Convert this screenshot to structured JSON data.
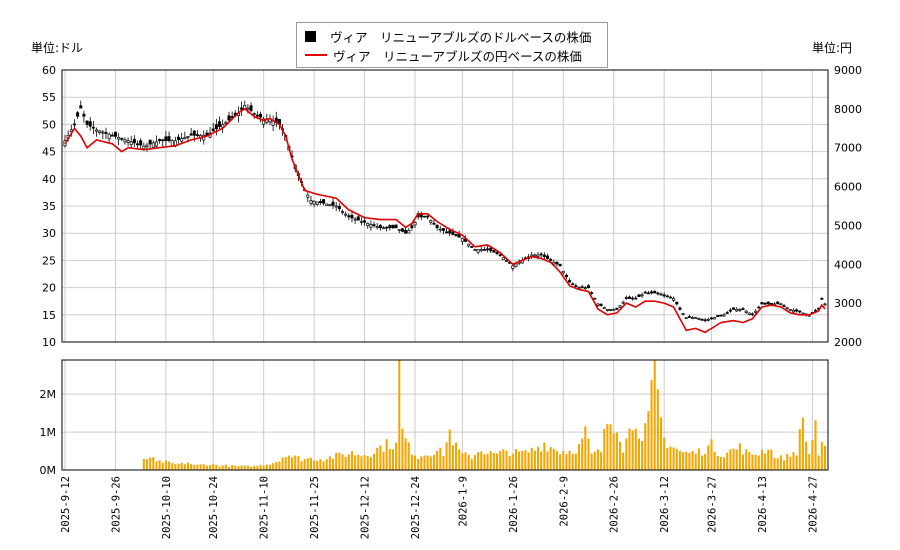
{
  "legend": {
    "usd": "ヴィア　リニューアブルズのドルベースの株価",
    "jpy": "ヴィア　リニューアブルズの円ベースの株価"
  },
  "units": {
    "left": "単位:ドル",
    "right": "単位:円"
  },
  "colors": {
    "candle_up": "#ffffff",
    "candle_down": "#000000",
    "yen_line": "#e00000",
    "volume": "#f5a500",
    "grid": "#cccccc"
  },
  "chart_data": {
    "type": "candlestick+line+bar",
    "x_start": "2025-09-12",
    "x_end": "2026-05-08",
    "x_ticks": [
      "2025-9-12",
      "2025-9-26",
      "2025-10-10",
      "2025-10-24",
      "2025-11-10",
      "2025-11-25",
      "2025-12-12",
      "2025-12-24",
      "2026-1-9",
      "2026-1-26",
      "2026-2-9",
      "2026-2-26",
      "2026-3-12",
      "2026-3-27",
      "2026-4-13",
      "2026-4-27"
    ],
    "y_left": {
      "min": 10,
      "max": 60,
      "ticks": [
        "10",
        "15",
        "20",
        "25",
        "30",
        "35",
        "40",
        "45",
        "50",
        "55",
        "60"
      ]
    },
    "y_right": {
      "min": 2000,
      "max": 9000,
      "ticks": [
        "2000",
        "3000",
        "4000",
        "5000",
        "6000",
        "7000",
        "8000",
        "9000"
      ]
    },
    "volume_axis": {
      "min": 0,
      "max": 2900000,
      "ticks": [
        "0M",
        "1M",
        "2M"
      ]
    },
    "anchors": {
      "usd": [
        [
          0,
          47
        ],
        [
          3,
          50
        ],
        [
          5,
          53
        ],
        [
          7,
          50
        ],
        [
          10,
          49
        ],
        [
          15,
          48
        ],
        [
          20,
          47
        ],
        [
          25,
          46
        ],
        [
          30,
          47
        ],
        [
          35,
          47
        ],
        [
          40,
          48
        ],
        [
          45,
          48
        ],
        [
          50,
          50
        ],
        [
          55,
          52
        ],
        [
          57,
          53.5
        ],
        [
          60,
          52
        ],
        [
          63,
          51
        ],
        [
          65,
          51
        ],
        [
          68,
          50
        ],
        [
          70,
          48
        ],
        [
          72,
          44
        ],
        [
          74,
          41
        ],
        [
          76,
          38
        ],
        [
          78,
          36
        ],
        [
          82,
          35.5
        ],
        [
          86,
          35
        ],
        [
          90,
          33
        ],
        [
          95,
          32
        ],
        [
          100,
          31
        ],
        [
          105,
          31
        ],
        [
          108,
          30
        ],
        [
          110,
          31
        ],
        [
          112,
          33
        ],
        [
          115,
          33
        ],
        [
          118,
          31
        ],
        [
          122,
          30
        ],
        [
          126,
          29
        ],
        [
          130,
          27
        ],
        [
          134,
          27
        ],
        [
          138,
          26
        ],
        [
          142,
          24
        ],
        [
          145,
          25
        ],
        [
          148,
          26
        ],
        [
          151,
          26
        ],
        [
          154,
          25
        ],
        [
          157,
          24
        ],
        [
          160,
          21
        ],
        [
          163,
          20
        ],
        [
          166,
          20
        ],
        [
          169,
          17
        ],
        [
          172,
          16
        ],
        [
          175,
          16
        ],
        [
          178,
          18
        ],
        [
          181,
          18
        ],
        [
          184,
          19
        ],
        [
          187,
          19
        ],
        [
          190,
          18.5
        ],
        [
          193,
          18
        ],
        [
          195,
          16
        ],
        [
          197,
          14.5
        ],
        [
          200,
          14.5
        ],
        [
          203,
          14
        ],
        [
          206,
          14.5
        ],
        [
          209,
          15
        ],
        [
          212,
          16
        ],
        [
          215,
          16
        ],
        [
          218,
          15
        ],
        [
          221,
          17
        ],
        [
          224,
          17
        ],
        [
          227,
          17
        ],
        [
          230,
          16
        ],
        [
          233,
          15.5
        ],
        [
          236,
          15
        ],
        [
          239,
          16
        ],
        [
          240,
          18
        ],
        [
          241,
          17
        ]
      ],
      "jpy": [
        [
          0,
          7100
        ],
        [
          3,
          7500
        ],
        [
          5,
          7300
        ],
        [
          7,
          7000
        ],
        [
          10,
          7200
        ],
        [
          15,
          7100
        ],
        [
          18,
          6900
        ],
        [
          20,
          7000
        ],
        [
          25,
          6950
        ],
        [
          30,
          7000
        ],
        [
          35,
          7050
        ],
        [
          40,
          7200
        ],
        [
          45,
          7300
        ],
        [
          50,
          7500
        ],
        [
          55,
          7900
        ],
        [
          57,
          8000
        ],
        [
          60,
          7800
        ],
        [
          63,
          7700
        ],
        [
          65,
          7750
        ],
        [
          68,
          7600
        ],
        [
          70,
          7300
        ],
        [
          72,
          6700
        ],
        [
          74,
          6300
        ],
        [
          76,
          5900
        ],
        [
          80,
          5800
        ],
        [
          86,
          5700
        ],
        [
          90,
          5400
        ],
        [
          95,
          5200
        ],
        [
          100,
          5150
        ],
        [
          105,
          5150
        ],
        [
          108,
          4950
        ],
        [
          110,
          5050
        ],
        [
          112,
          5300
        ],
        [
          115,
          5300
        ],
        [
          118,
          5100
        ],
        [
          122,
          4900
        ],
        [
          126,
          4750
        ],
        [
          130,
          4450
        ],
        [
          134,
          4500
        ],
        [
          138,
          4300
        ],
        [
          142,
          4000
        ],
        [
          145,
          4100
        ],
        [
          148,
          4200
        ],
        [
          151,
          4150
        ],
        [
          154,
          4050
        ],
        [
          157,
          3800
        ],
        [
          160,
          3450
        ],
        [
          163,
          3350
        ],
        [
          166,
          3300
        ],
        [
          169,
          2850
        ],
        [
          172,
          2700
        ],
        [
          175,
          2750
        ],
        [
          178,
          3000
        ],
        [
          181,
          2900
        ],
        [
          184,
          3050
        ],
        [
          187,
          3050
        ],
        [
          190,
          3000
        ],
        [
          193,
          2900
        ],
        [
          195,
          2600
        ],
        [
          197,
          2300
        ],
        [
          200,
          2350
        ],
        [
          203,
          2250
        ],
        [
          205,
          2350
        ],
        [
          208,
          2500
        ],
        [
          212,
          2550
        ],
        [
          215,
          2500
        ],
        [
          218,
          2600
        ],
        [
          221,
          2900
        ],
        [
          224,
          2950
        ],
        [
          227,
          2900
        ],
        [
          230,
          2750
        ],
        [
          233,
          2700
        ],
        [
          236,
          2700
        ],
        [
          239,
          2800
        ],
        [
          240,
          2950
        ],
        [
          241,
          2850
        ]
      ],
      "volume": [
        [
          0,
          0
        ],
        [
          24,
          0
        ],
        [
          25,
          250000
        ],
        [
          27,
          350000
        ],
        [
          29,
          200000
        ],
        [
          31,
          220000
        ],
        [
          33,
          180000
        ],
        [
          35,
          150000
        ],
        [
          37,
          160000
        ],
        [
          39,
          200000
        ],
        [
          41,
          120000
        ],
        [
          45,
          150000
        ],
        [
          50,
          120000
        ],
        [
          55,
          100000
        ],
        [
          60,
          100000
        ],
        [
          64,
          150000
        ],
        [
          66,
          200000
        ],
        [
          68,
          250000
        ],
        [
          70,
          450000
        ],
        [
          72,
          350000
        ],
        [
          75,
          300000
        ],
        [
          78,
          300000
        ],
        [
          82,
          300000
        ],
        [
          85,
          350000
        ],
        [
          88,
          400000
        ],
        [
          91,
          450000
        ],
        [
          94,
          400000
        ],
        [
          97,
          450000
        ],
        [
          100,
          600000
        ],
        [
          103,
          700000
        ],
        [
          105,
          650000
        ],
        [
          106,
          2750000
        ],
        [
          107,
          1000000
        ],
        [
          109,
          600000
        ],
        [
          112,
          350000
        ],
        [
          115,
          450000
        ],
        [
          118,
          500000
        ],
        [
          120,
          450000
        ],
        [
          122,
          1000000
        ],
        [
          124,
          600000
        ],
        [
          126,
          400000
        ],
        [
          129,
          350000
        ],
        [
          132,
          550000
        ],
        [
          134,
          450000
        ],
        [
          137,
          400000
        ],
        [
          140,
          500000
        ],
        [
          143,
          450000
        ],
        [
          146,
          450000
        ],
        [
          149,
          550000
        ],
        [
          152,
          700000
        ],
        [
          154,
          600000
        ],
        [
          157,
          500000
        ],
        [
          160,
          500000
        ],
        [
          163,
          600000
        ],
        [
          165,
          1000000
        ],
        [
          167,
          400000
        ],
        [
          170,
          500000
        ],
        [
          172,
          1300000
        ],
        [
          175,
          1250000
        ],
        [
          177,
          600000
        ],
        [
          179,
          1000000
        ],
        [
          181,
          1450000
        ],
        [
          183,
          700000
        ],
        [
          185,
          1300000
        ],
        [
          187,
          2800000
        ],
        [
          188,
          1900000
        ],
        [
          190,
          800000
        ],
        [
          193,
          600000
        ],
        [
          196,
          450000
        ],
        [
          199,
          450000
        ],
        [
          202,
          500000
        ],
        [
          205,
          650000
        ],
        [
          208,
          400000
        ],
        [
          211,
          500000
        ],
        [
          214,
          600000
        ],
        [
          217,
          400000
        ],
        [
          220,
          450000
        ],
        [
          223,
          600000
        ],
        [
          226,
          300000
        ],
        [
          229,
          350000
        ],
        [
          232,
          500000
        ],
        [
          234,
          1300000
        ],
        [
          236,
          400000
        ],
        [
          238,
          1300000
        ],
        [
          239,
          400000
        ],
        [
          240,
          600000
        ],
        [
          241,
          550000
        ]
      ]
    }
  }
}
